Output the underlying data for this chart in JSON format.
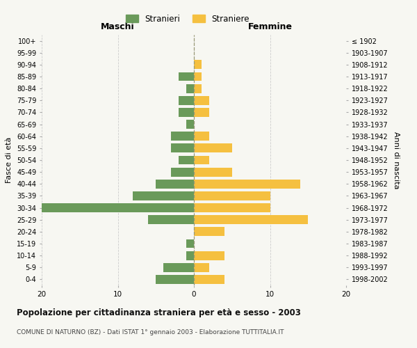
{
  "age_groups": [
    "0-4",
    "5-9",
    "10-14",
    "15-19",
    "20-24",
    "25-29",
    "30-34",
    "35-39",
    "40-44",
    "45-49",
    "50-54",
    "55-59",
    "60-64",
    "65-69",
    "70-74",
    "75-79",
    "80-84",
    "85-89",
    "90-94",
    "95-99",
    "100+"
  ],
  "birth_years": [
    "1998-2002",
    "1993-1997",
    "1988-1992",
    "1983-1987",
    "1978-1982",
    "1973-1977",
    "1968-1972",
    "1963-1967",
    "1958-1962",
    "1953-1957",
    "1948-1952",
    "1943-1947",
    "1938-1942",
    "1933-1937",
    "1928-1932",
    "1923-1927",
    "1918-1922",
    "1913-1917",
    "1908-1912",
    "1903-1907",
    "≤ 1902"
  ],
  "maschi": [
    5,
    4,
    1,
    1,
    0,
    6,
    20,
    8,
    5,
    3,
    2,
    3,
    3,
    1,
    2,
    2,
    1,
    2,
    0,
    0,
    0
  ],
  "femmine": [
    4,
    2,
    4,
    0,
    4,
    15,
    10,
    10,
    14,
    5,
    2,
    5,
    2,
    0,
    2,
    2,
    1,
    1,
    1,
    0,
    0
  ],
  "color_maschi": "#6a9a5a",
  "color_femmine": "#f5c040",
  "background_color": "#f7f7f2",
  "plot_background": "#f7f7f2",
  "title": "Popolazione per cittadinanza straniera per età e sesso - 2003",
  "subtitle": "COMUNE DI NATURNO (BZ) - Dati ISTAT 1° gennaio 2003 - Elaborazione TUTTITALIA.IT",
  "xlabel_left": "Maschi",
  "xlabel_right": "Femmine",
  "ylabel_left": "Fasce di età",
  "ylabel_right": "Anni di nascita",
  "legend_maschi": "Stranieri",
  "legend_femmine": "Straniere",
  "xlim": 20,
  "grid_color": "#cccccc",
  "dashed_line_color": "#999977"
}
